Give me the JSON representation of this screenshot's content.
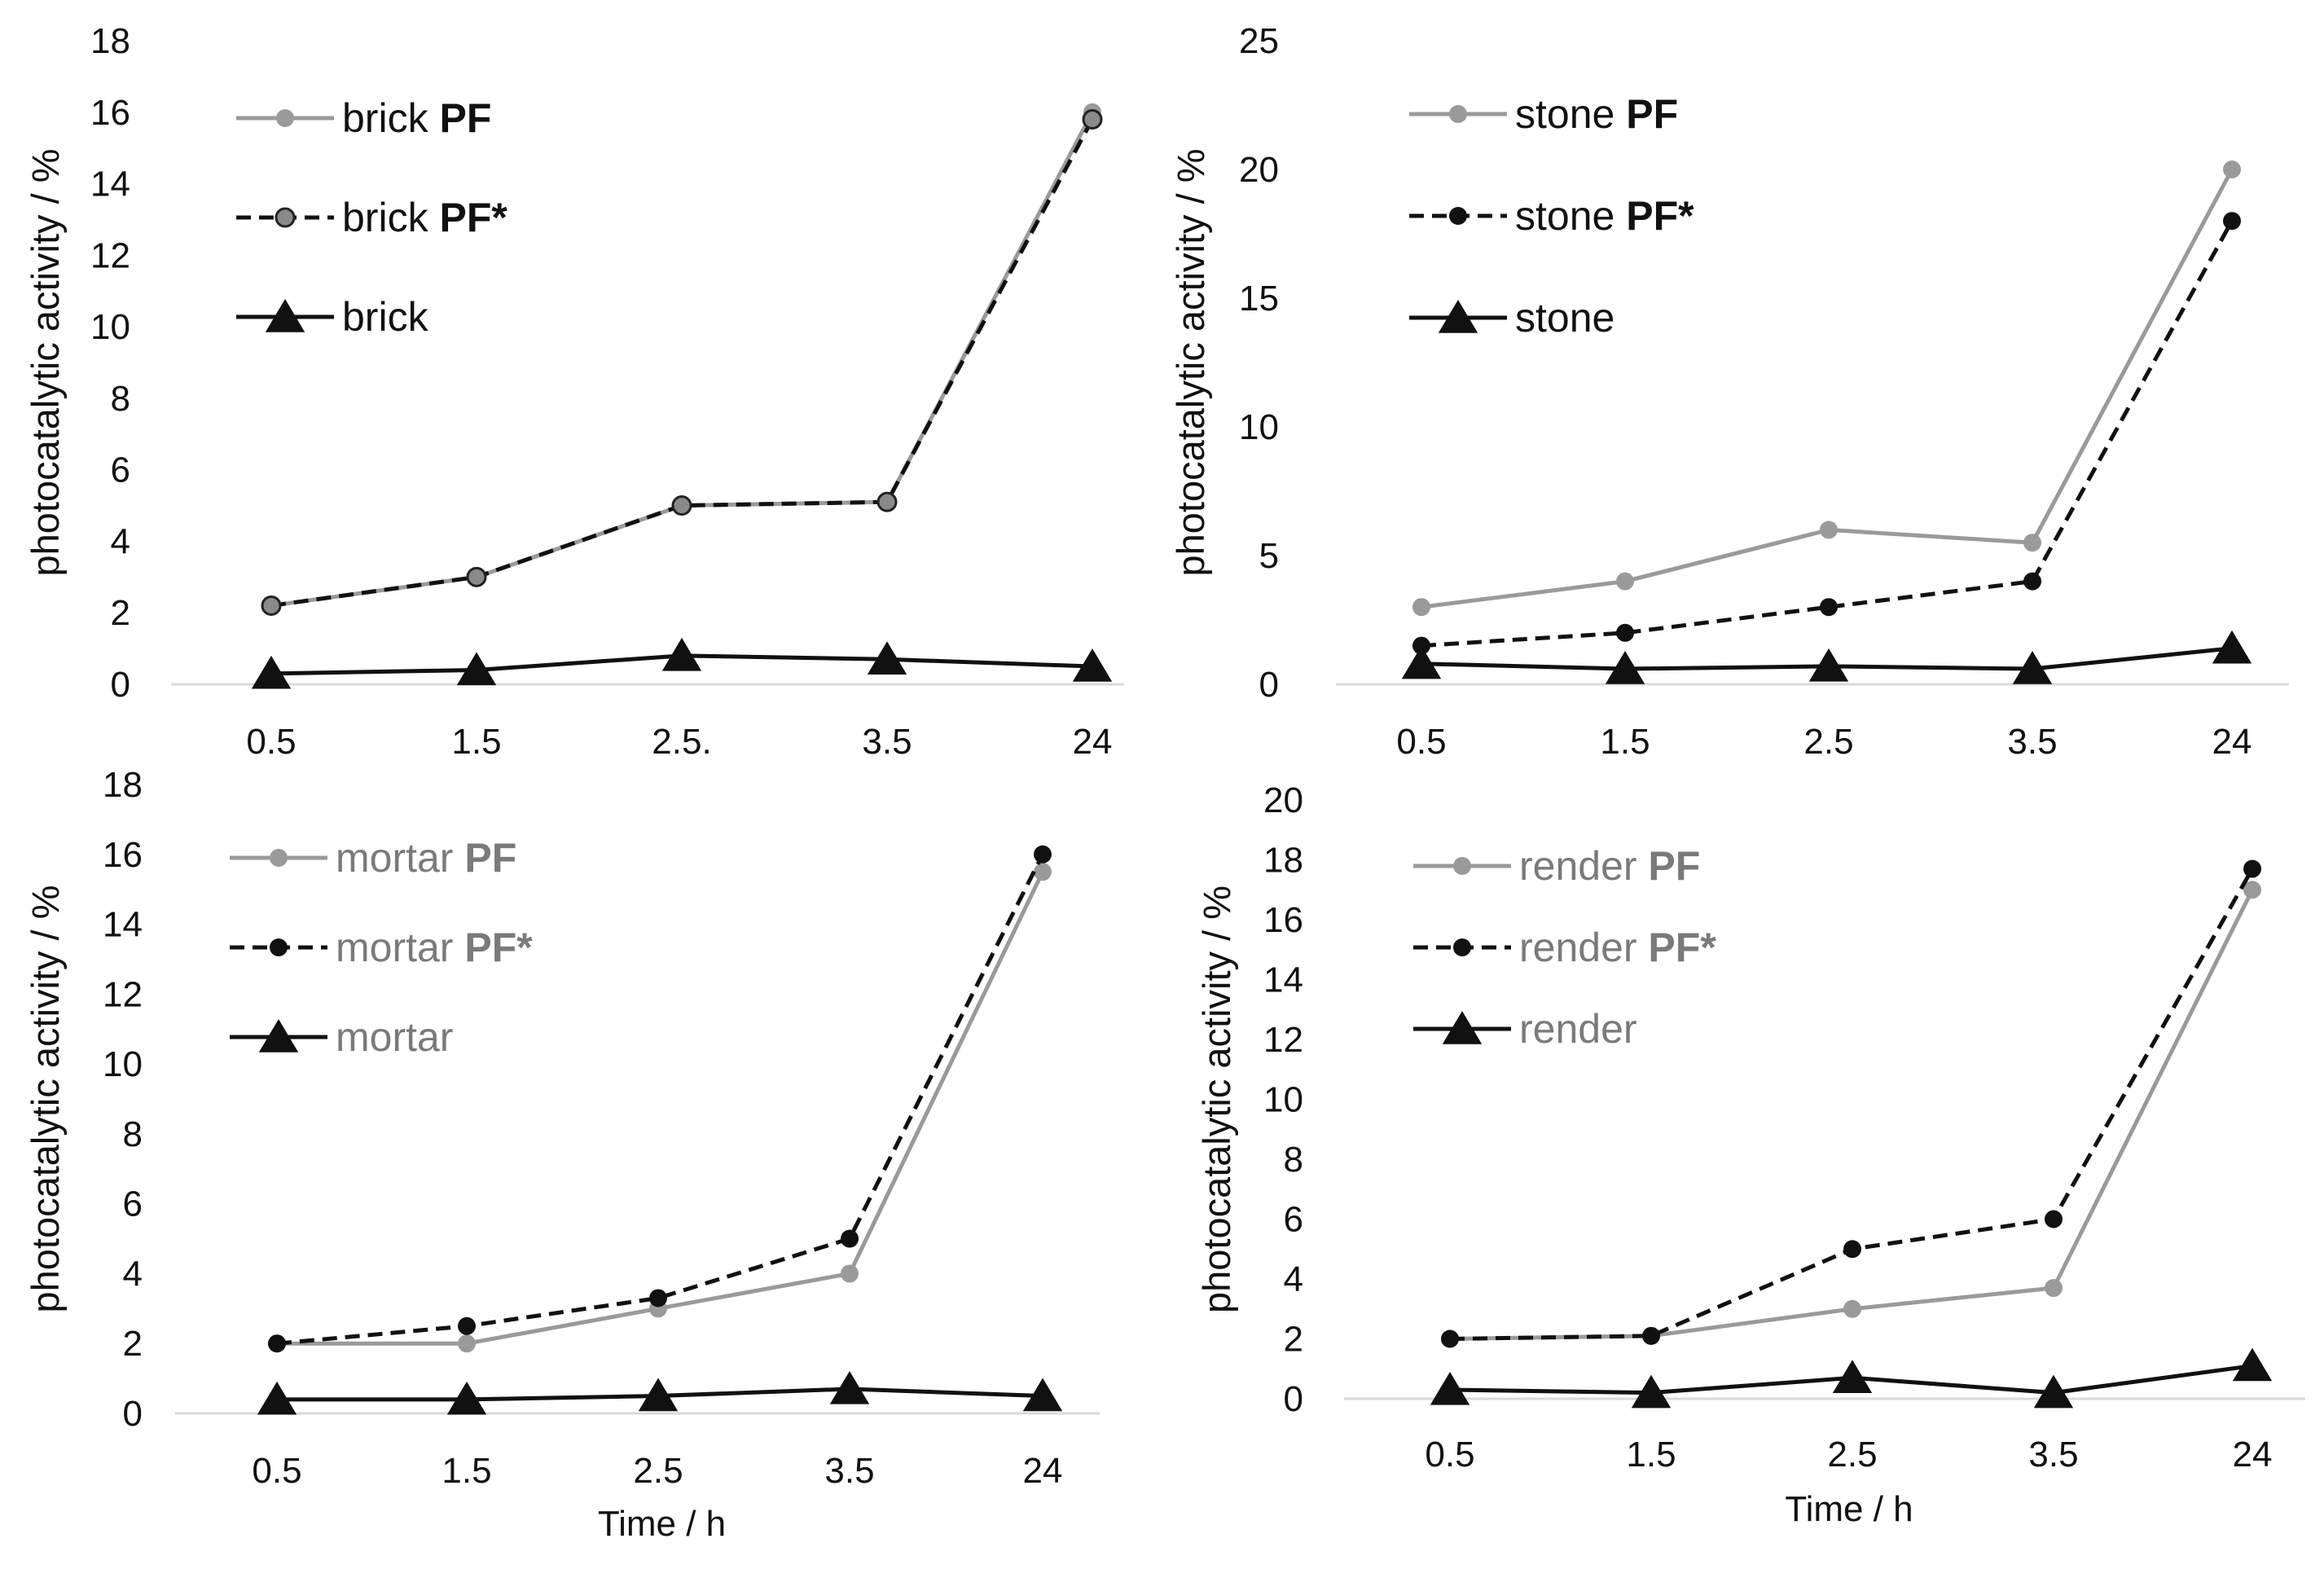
{
  "chart_data": [
    {
      "type": "line",
      "title": "",
      "categories": [
        "0.5",
        "1.5",
        "2.5",
        "3.5",
        "24"
      ],
      "category_labels": [
        "0.5",
        "1.5",
        "2.5.",
        "3.5",
        "24"
      ],
      "ylabel": "photocatalytic activity / %",
      "xlabel": "",
      "ylim": [
        0,
        18
      ],
      "yticks": [
        0,
        2,
        4,
        6,
        8,
        10,
        12,
        14,
        16,
        18
      ],
      "legend_position": "top-left",
      "series": [
        {
          "name": "brick",
          "bold_suffix": "PF",
          "style": "solid",
          "color": "#9a9a9a",
          "marker": "circle",
          "values": [
            2.2,
            3.0,
            5.0,
            5.1,
            16.0
          ]
        },
        {
          "name": "brick",
          "bold_suffix": "PF*",
          "style": "dashed",
          "color": "#111111",
          "marker": "circle-gray",
          "values": [
            2.2,
            3.0,
            5.0,
            5.1,
            15.8
          ]
        },
        {
          "name": "brick",
          "bold_suffix": "",
          "style": "solid",
          "color": "#111111",
          "marker": "triangle",
          "values": [
            0.3,
            0.4,
            0.8,
            0.7,
            0.5
          ]
        }
      ]
    },
    {
      "type": "line",
      "title": "",
      "categories": [
        "0.5",
        "1.5",
        "2.5",
        "3.5",
        "24"
      ],
      "category_labels": [
        "0.5",
        "1.5",
        "2.5",
        "3.5",
        "24"
      ],
      "ylabel": "photocatalytic activity / %",
      "xlabel": "",
      "ylim": [
        0,
        25
      ],
      "yticks": [
        0,
        5,
        10,
        15,
        20,
        25
      ],
      "legend_position": "top-left",
      "series": [
        {
          "name": "stone",
          "bold_suffix": "PF",
          "style": "solid",
          "color": "#9a9a9a",
          "marker": "circle",
          "values": [
            3.0,
            4.0,
            6.0,
            5.5,
            20.0
          ]
        },
        {
          "name": "stone",
          "bold_suffix": "PF*",
          "style": "dashed",
          "color": "#111111",
          "marker": "circle-black",
          "values": [
            1.5,
            2.0,
            3.0,
            4.0,
            18.0
          ]
        },
        {
          "name": "stone",
          "bold_suffix": "",
          "style": "solid",
          "color": "#111111",
          "marker": "triangle",
          "values": [
            0.8,
            0.6,
            0.7,
            0.6,
            1.4
          ]
        }
      ]
    },
    {
      "type": "line",
      "title": "",
      "categories": [
        "0.5",
        "1.5",
        "2.5",
        "3.5",
        "24"
      ],
      "category_labels": [
        "0.5",
        "1.5",
        "2.5",
        "3.5",
        "24"
      ],
      "ylabel": "photocatalytic activity / %",
      "xlabel": "Time / h",
      "ylim": [
        0,
        18
      ],
      "yticks": [
        0,
        2,
        4,
        6,
        8,
        10,
        12,
        14,
        16,
        18
      ],
      "legend_position": "top-left",
      "series": [
        {
          "name": "mortar",
          "bold_suffix": "PF",
          "style": "solid",
          "color": "#9a9a9a",
          "marker": "circle",
          "values": [
            2.0,
            2.0,
            3.0,
            4.0,
            15.5
          ]
        },
        {
          "name": "mortar",
          "bold_suffix": "PF*",
          "style": "dashed",
          "color": "#111111",
          "marker": "circle-black",
          "values": [
            2.0,
            2.5,
            3.3,
            5.0,
            16.0
          ]
        },
        {
          "name": "mortar",
          "bold_suffix": "",
          "style": "solid",
          "color": "#111111",
          "marker": "triangle",
          "values": [
            0.4,
            0.4,
            0.5,
            0.7,
            0.5
          ]
        }
      ]
    },
    {
      "type": "line",
      "title": "",
      "categories": [
        "0.5",
        "1.5",
        "2.5",
        "3.5",
        "24"
      ],
      "category_labels": [
        "0.5",
        "1.5",
        "2.5",
        "3.5",
        "24"
      ],
      "ylabel": "photocatalytic activity / %",
      "xlabel": "Time / h",
      "ylim": [
        0,
        20
      ],
      "yticks": [
        0,
        2,
        4,
        6,
        8,
        10,
        12,
        14,
        16,
        18,
        20
      ],
      "legend_position": "top-left",
      "series": [
        {
          "name": "render",
          "bold_suffix": "PF",
          "style": "solid",
          "color": "#9a9a9a",
          "marker": "circle",
          "values": [
            2.0,
            2.1,
            3.0,
            3.7,
            17.0
          ]
        },
        {
          "name": "render",
          "bold_suffix": "PF*",
          "style": "dashed",
          "color": "#111111",
          "marker": "circle-black",
          "values": [
            2.0,
            2.1,
            5.0,
            6.0,
            17.7
          ]
        },
        {
          "name": "render",
          "bold_suffix": "",
          "style": "solid",
          "color": "#111111",
          "marker": "triangle",
          "values": [
            0.3,
            0.2,
            0.7,
            0.2,
            1.1
          ]
        }
      ]
    }
  ]
}
